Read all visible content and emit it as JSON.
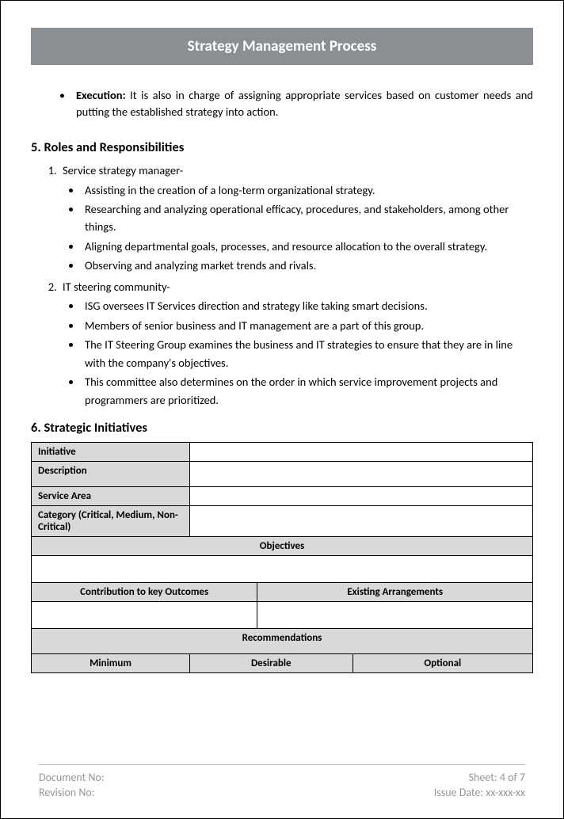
{
  "title": "Strategy Management Process",
  "execution": {
    "label": "Execution:",
    "text": "It is also in charge of assigning appropriate services based on customer needs and putting the established strategy into action."
  },
  "section5": {
    "heading": "5. Roles and Responsibilities",
    "role1": {
      "title": "Service strategy manager-",
      "items": [
        "Assisting in the creation of a long-term organizational strategy.",
        "Researching and analyzing operational efficacy, procedures, and stakeholders, among other things.",
        "Aligning departmental goals, processes, and resource allocation to the overall strategy.",
        "Observing and analyzing market trends and rivals."
      ]
    },
    "role2": {
      "title": "IT steering community-",
      "items": [
        "ISG oversees IT Services direction and strategy like taking smart decisions.",
        "Members of senior business and IT management are a part of this group.",
        "The IT Steering Group examines the business and IT strategies to ensure that they are in line with the company's objectives.",
        "This committee also determines on the order in which service improvement projects and programmers are prioritized."
      ]
    }
  },
  "section6": {
    "heading": "6. Strategic Initiatives",
    "labels": {
      "initiative": "Initiative",
      "description": "Description",
      "serviceArea": "Service Area",
      "category": "Category (Critical, Medium, Non-Critical)",
      "objectives": "Objectives",
      "contribution": "Contribution to key Outcomes",
      "existing": "Existing Arrangements",
      "recommendations": "Recommendations",
      "minimum": "Minimum",
      "desirable": "Desirable",
      "optional": "Optional"
    }
  },
  "footer": {
    "docNo": "Document No:",
    "sheet": "Sheet: 4 of 7",
    "revNo": "Revision No:",
    "issueDate": "Issue Date: xx-xxx-xx"
  },
  "colors": {
    "banner_bg": "#8a8f94",
    "banner_text": "#ffffff",
    "table_shade": "#d9d9d9",
    "footer_text": "#969696",
    "border": "#000000"
  }
}
